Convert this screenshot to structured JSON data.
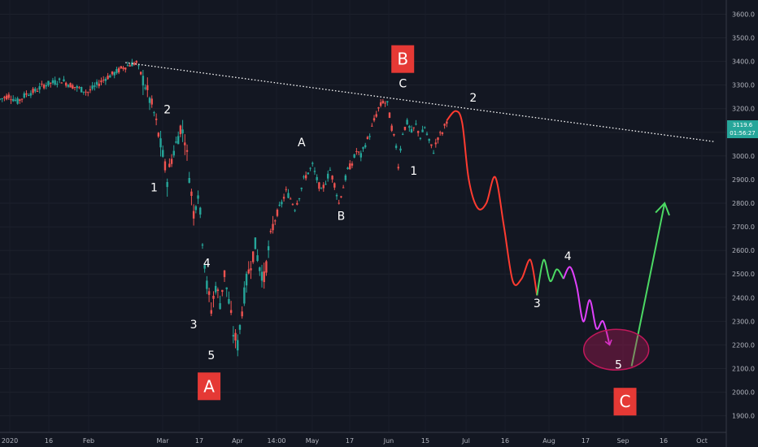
{
  "chart_data": {
    "type": "candlestick",
    "instrument_price": "3119.6",
    "countdown": "01:56:27",
    "x_tick_labels": [
      "2020",
      "16",
      "Feb",
      "Mar",
      "17",
      "Apr",
      "14:00",
      "May",
      "17",
      "Jun",
      "15",
      "Jul",
      "16",
      "Aug",
      "17",
      "Sep",
      "16",
      "Oct"
    ],
    "y_tick_labels": [
      "3600.0",
      "3500.0",
      "3400.0",
      "3300.0",
      "3200.0",
      "3100.0",
      "3000.0",
      "2900.0",
      "2800.0",
      "2700.0",
      "2600.0",
      "2500.0",
      "2400.0",
      "2300.0",
      "2200.0",
      "2100.0",
      "2000.0",
      "1900.0"
    ],
    "ylim": [
      1830,
      3660
    ],
    "price_path": [
      {
        "t": 0,
        "v": 3240
      },
      {
        "t": 4,
        "v": 3255
      },
      {
        "t": 8,
        "v": 3230
      },
      {
        "t": 12,
        "v": 3262
      },
      {
        "t": 16,
        "v": 3275
      },
      {
        "t": 20,
        "v": 3300
      },
      {
        "t": 24,
        "v": 3310
      },
      {
        "t": 28,
        "v": 3320
      },
      {
        "t": 32,
        "v": 3300
      },
      {
        "t": 36,
        "v": 3285
      },
      {
        "t": 40,
        "v": 3270
      },
      {
        "t": 44,
        "v": 3300
      },
      {
        "t": 48,
        "v": 3330
      },
      {
        "t": 52,
        "v": 3350
      },
      {
        "t": 56,
        "v": 3375
      },
      {
        "t": 60,
        "v": 3390
      },
      {
        "t": 62,
        "v": 3395
      },
      {
        "t": 66,
        "v": 3300
      },
      {
        "t": 70,
        "v": 3180
      },
      {
        "t": 74,
        "v": 3000
      },
      {
        "t": 76,
        "v": 2900
      },
      {
        "t": 78,
        "v": 2990
      },
      {
        "t": 80,
        "v": 3050
      },
      {
        "t": 82,
        "v": 3120
      },
      {
        "t": 84,
        "v": 3080
      },
      {
        "t": 86,
        "v": 2920
      },
      {
        "t": 88,
        "v": 2760
      },
      {
        "t": 90,
        "v": 2850
      },
      {
        "t": 92,
        "v": 2650
      },
      {
        "t": 94,
        "v": 2450
      },
      {
        "t": 96,
        "v": 2350
      },
      {
        "t": 98,
        "v": 2450
      },
      {
        "t": 100,
        "v": 2380
      },
      {
        "t": 102,
        "v": 2500
      },
      {
        "t": 104,
        "v": 2380
      },
      {
        "t": 106,
        "v": 2250
      },
      {
        "t": 108,
        "v": 2200
      },
      {
        "t": 110,
        "v": 2350
      },
      {
        "t": 112,
        "v": 2470
      },
      {
        "t": 114,
        "v": 2550
      },
      {
        "t": 116,
        "v": 2620
      },
      {
        "t": 118,
        "v": 2530
      },
      {
        "t": 120,
        "v": 2480
      },
      {
        "t": 122,
        "v": 2600
      },
      {
        "t": 124,
        "v": 2700
      },
      {
        "t": 126,
        "v": 2760
      },
      {
        "t": 128,
        "v": 2800
      },
      {
        "t": 130,
        "v": 2850
      },
      {
        "t": 132,
        "v": 2820
      },
      {
        "t": 134,
        "v": 2780
      },
      {
        "t": 136,
        "v": 2830
      },
      {
        "t": 138,
        "v": 2900
      },
      {
        "t": 140,
        "v": 2930
      },
      {
        "t": 142,
        "v": 2960
      },
      {
        "t": 144,
        "v": 2900
      },
      {
        "t": 146,
        "v": 2850
      },
      {
        "t": 148,
        "v": 2890
      },
      {
        "t": 150,
        "v": 2940
      },
      {
        "t": 152,
        "v": 2880
      },
      {
        "t": 154,
        "v": 2800
      },
      {
        "t": 156,
        "v": 2870
      },
      {
        "t": 158,
        "v": 2940
      },
      {
        "t": 160,
        "v": 2970
      },
      {
        "t": 162,
        "v": 3020
      },
      {
        "t": 164,
        "v": 3000
      },
      {
        "t": 166,
        "v": 3050
      },
      {
        "t": 168,
        "v": 3090
      },
      {
        "t": 170,
        "v": 3150
      },
      {
        "t": 172,
        "v": 3200
      },
      {
        "t": 174,
        "v": 3230
      },
      {
        "t": 176,
        "v": 3220
      },
      {
        "t": 178,
        "v": 3120
      },
      {
        "t": 180,
        "v": 3040
      },
      {
        "t": 181,
        "v": 2960
      },
      {
        "t": 183,
        "v": 3100
      },
      {
        "t": 185,
        "v": 3140
      },
      {
        "t": 187,
        "v": 3100
      },
      {
        "t": 189,
        "v": 3130
      },
      {
        "t": 191,
        "v": 3080
      },
      {
        "t": 193,
        "v": 3120
      },
      {
        "t": 195,
        "v": 3060
      },
      {
        "t": 197,
        "v": 3020
      },
      {
        "t": 199,
        "v": 3080
      },
      {
        "t": 201,
        "v": 3100
      },
      {
        "t": 203,
        "v": 3150
      }
    ],
    "trendline": [
      {
        "t": 57,
        "v": 3395
      },
      {
        "t": 325,
        "v": 3060
      }
    ],
    "projection_segments": [
      {
        "color": "#ff3b30",
        "points": [
          {
            "t": 203,
            "v": 3150
          },
          {
            "t": 207,
            "v": 3190
          },
          {
            "t": 210,
            "v": 3140
          },
          {
            "t": 213,
            "v": 2900
          },
          {
            "t": 217,
            "v": 2780
          },
          {
            "t": 221,
            "v": 2800
          },
          {
            "t": 225,
            "v": 2910
          },
          {
            "t": 229,
            "v": 2700
          },
          {
            "t": 233,
            "v": 2470
          },
          {
            "t": 237,
            "v": 2480
          },
          {
            "t": 241,
            "v": 2560
          },
          {
            "t": 244,
            "v": 2410
          }
        ]
      },
      {
        "color": "#4cd964",
        "points": [
          {
            "t": 244,
            "v": 2410
          },
          {
            "t": 247,
            "v": 2560
          },
          {
            "t": 250,
            "v": 2470
          },
          {
            "t": 253,
            "v": 2520
          },
          {
            "t": 256,
            "v": 2480
          }
        ]
      },
      {
        "color": "#e040fb",
        "points": [
          {
            "t": 256,
            "v": 2480
          },
          {
            "t": 259,
            "v": 2530
          },
          {
            "t": 262,
            "v": 2450
          },
          {
            "t": 265,
            "v": 2300
          },
          {
            "t": 268,
            "v": 2390
          },
          {
            "t": 271,
            "v": 2270
          },
          {
            "t": 274,
            "v": 2300
          },
          {
            "t": 277,
            "v": 2200
          }
        ]
      },
      {
        "color": "#4cd964",
        "points": [
          {
            "t": 287,
            "v": 2110
          },
          {
            "t": 302,
            "v": 2800
          }
        ]
      }
    ],
    "wave_labels": [
      {
        "text": "1",
        "t": 70,
        "v": 2850
      },
      {
        "text": "2",
        "t": 76,
        "v": 3180
      },
      {
        "text": "3",
        "t": 88,
        "v": 2270
      },
      {
        "text": "4",
        "t": 94,
        "v": 2530
      },
      {
        "text": "5",
        "t": 96,
        "v": 2140
      },
      {
        "text": "A",
        "t": 137,
        "v": 3040
      },
      {
        "text": "B",
        "t": 155,
        "v": 2730
      },
      {
        "text": "C",
        "t": 183,
        "v": 3290
      },
      {
        "text": "1",
        "t": 188,
        "v": 2920
      },
      {
        "text": "2",
        "t": 215,
        "v": 3230
      },
      {
        "text": "3",
        "t": 244,
        "v": 2360
      },
      {
        "text": "4",
        "t": 258,
        "v": 2560
      },
      {
        "text": "5",
        "t": 281,
        "v": 2100
      }
    ],
    "big_labels": [
      {
        "text": "A",
        "t": 95,
        "v": 2025
      },
      {
        "text": "B",
        "t": 183,
        "v": 3410
      },
      {
        "text": "C",
        "t": 284,
        "v": 1960
      }
    ],
    "target_ellipse": {
      "t": 280,
      "v": 2180
    },
    "colors": {
      "up": "#26a69a",
      "down": "#ef5350",
      "trendline": "#ffffff",
      "badge": "#e53935",
      "target": "#c2185b"
    }
  }
}
